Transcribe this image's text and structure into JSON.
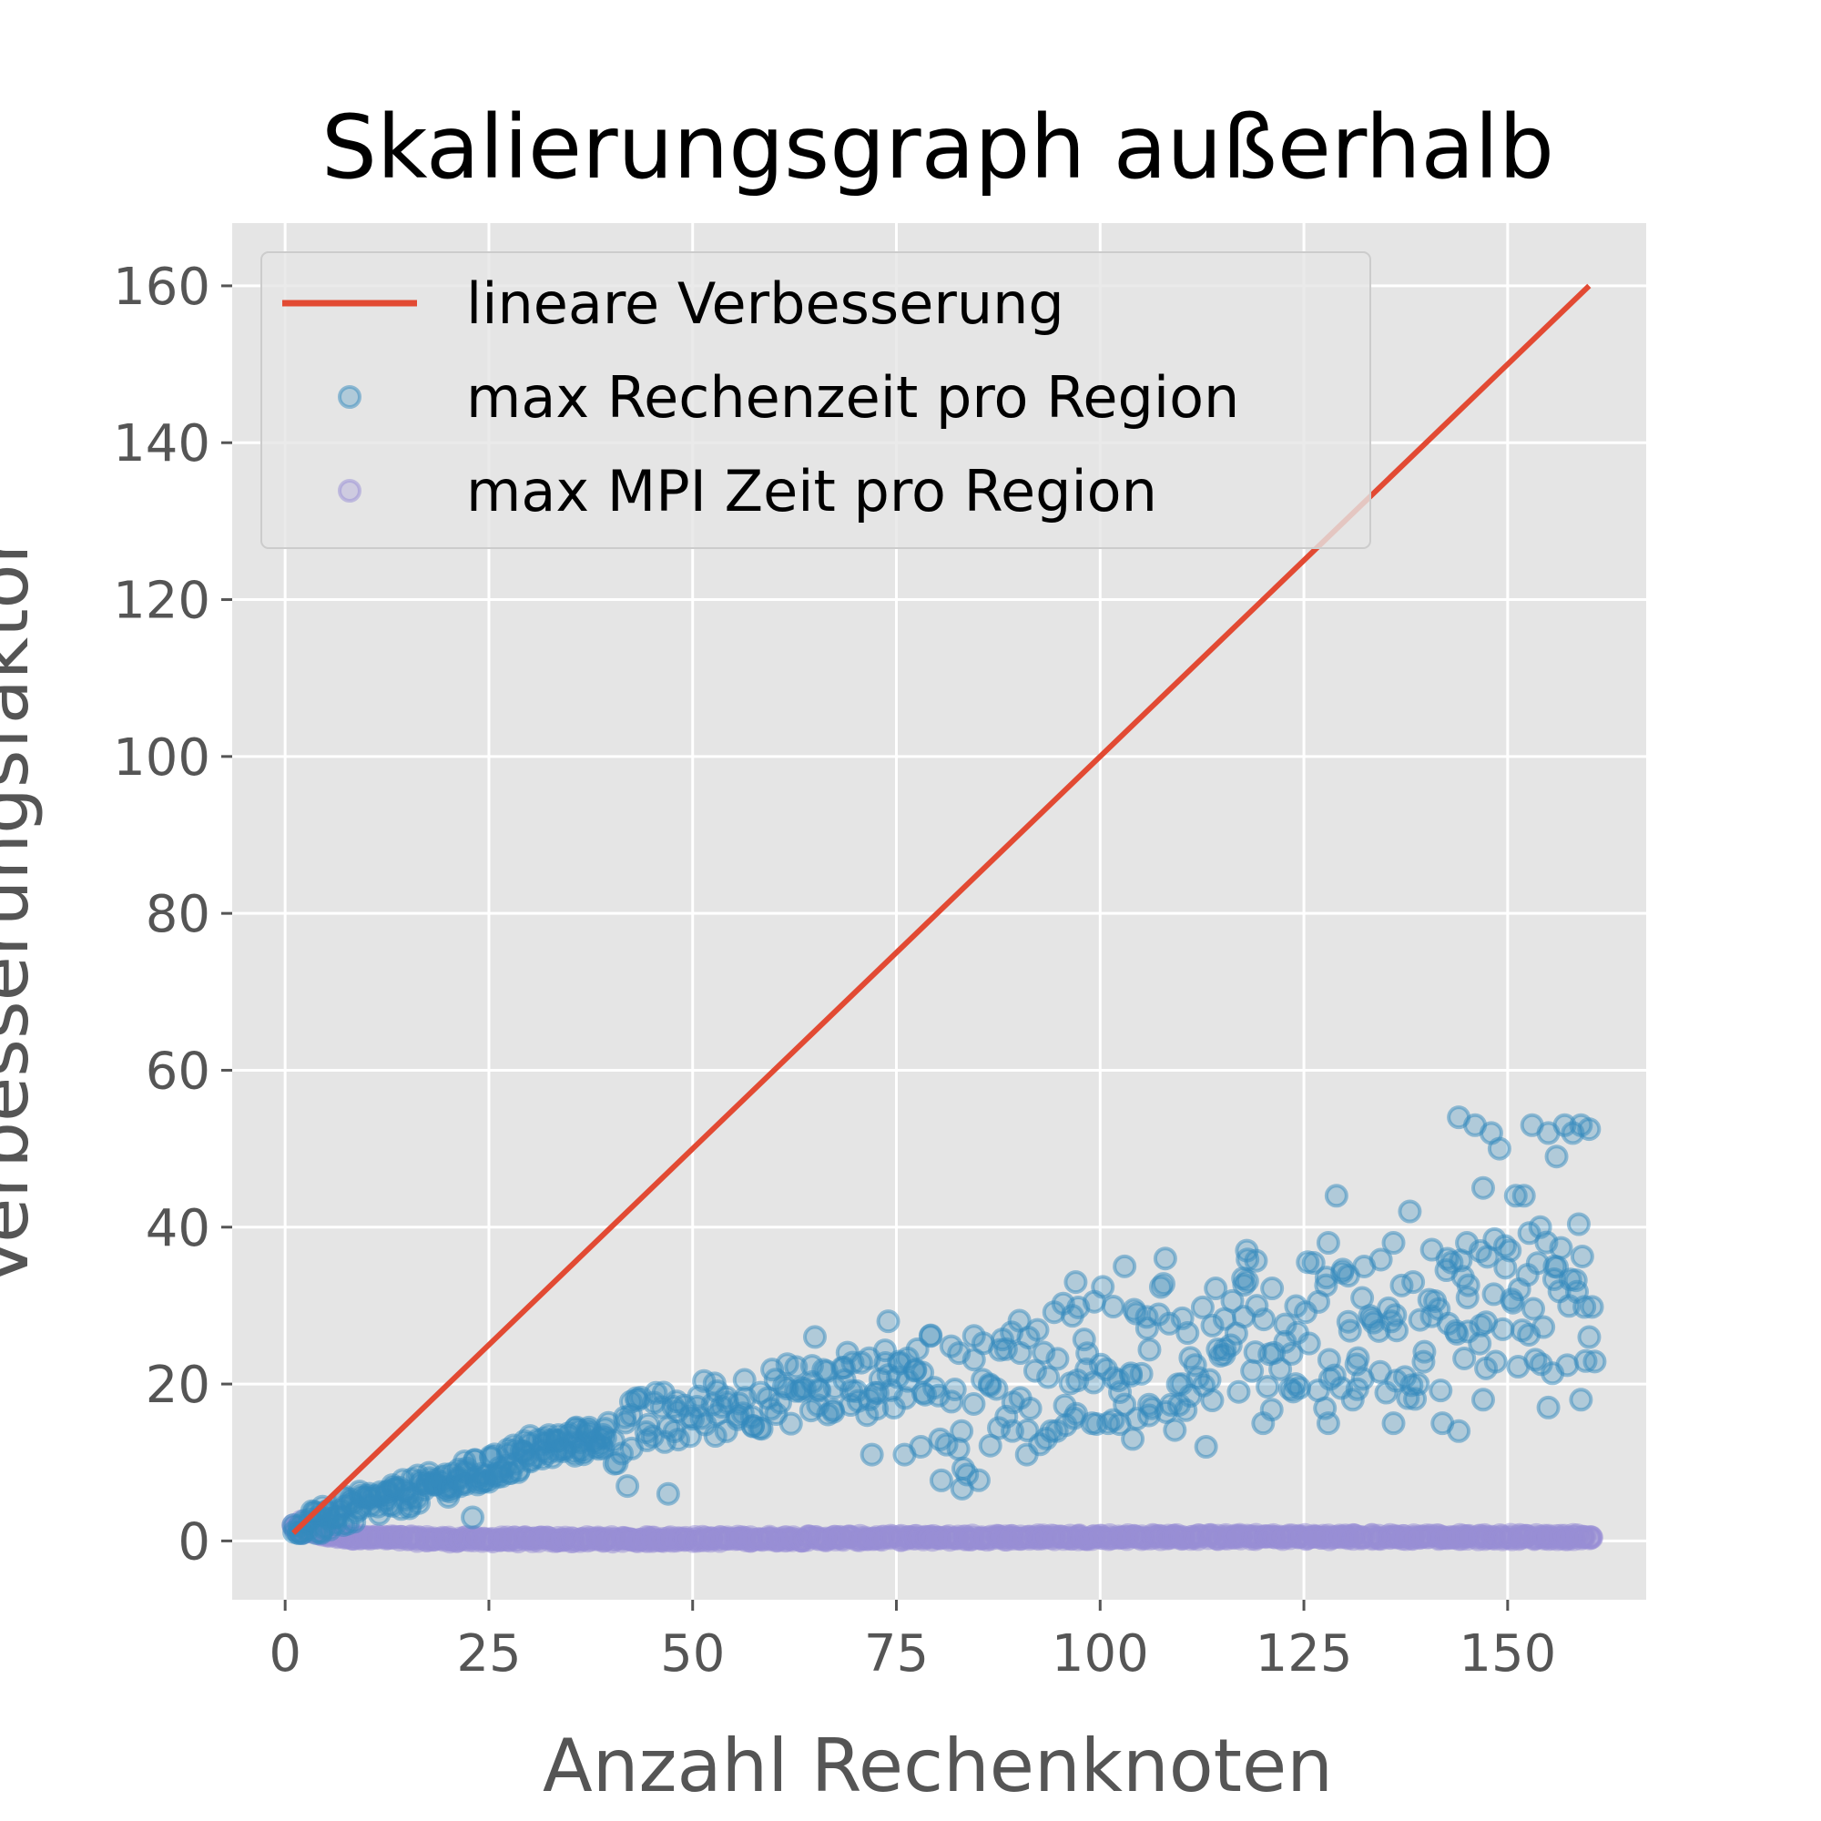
{
  "chart_data": {
    "type": "scatter",
    "title": "Skalierungsgraph außerhalb",
    "xlabel": "Anzahl Rechenknoten",
    "ylabel": "Verbesserungsfaktor",
    "xlim": [
      -6.5,
      167
    ],
    "ylim": [
      -7.5,
      168
    ],
    "xticks": [
      0,
      25,
      50,
      75,
      100,
      125,
      150
    ],
    "yticks": [
      0,
      20,
      40,
      60,
      80,
      100,
      120,
      140,
      160
    ],
    "grid": true,
    "legend_position": "top-left",
    "series": [
      {
        "name": "lineare Verbesserung",
        "kind": "line",
        "color": "#E24A33",
        "x": [
          1,
          160
        ],
        "y": [
          1,
          160
        ]
      },
      {
        "name": "max Rechenzeit pro Region",
        "kind": "scatter",
        "color": "#348ABD",
        "trend": {
          "x": [
            1,
            5,
            10,
            15,
            20,
            25,
            30,
            40,
            50,
            60,
            70,
            80,
            90,
            100,
            110,
            120,
            130,
            140,
            150,
            160
          ],
          "y": [
            1,
            3.5,
            5,
            6.5,
            8,
            9.5,
            12,
            14,
            17,
            19,
            20,
            23,
            27,
            31,
            32,
            34,
            35,
            35,
            37,
            38
          ]
        },
        "extra_points": [
          [
            144,
            54
          ],
          [
            146,
            53
          ],
          [
            148,
            52
          ],
          [
            149,
            50
          ],
          [
            153,
            53
          ],
          [
            155,
            52
          ],
          [
            157,
            53
          ],
          [
            158,
            52
          ],
          [
            159,
            53
          ],
          [
            160,
            52.5
          ],
          [
            129,
            44
          ],
          [
            138,
            42
          ],
          [
            147,
            45
          ],
          [
            151,
            44
          ],
          [
            154,
            40
          ],
          [
            156,
            49
          ],
          [
            152,
            44
          ],
          [
            97,
            33
          ],
          [
            103,
            35
          ],
          [
            108,
            36
          ],
          [
            118,
            37
          ],
          [
            128,
            38
          ],
          [
            136,
            38
          ],
          [
            145,
            38
          ],
          [
            74,
            28
          ],
          [
            76,
            11
          ],
          [
            78,
            12
          ],
          [
            91,
            11
          ],
          [
            94,
            14
          ],
          [
            101,
            15
          ],
          [
            104,
            13
          ],
          [
            113,
            12
          ],
          [
            120,
            15
          ],
          [
            128,
            15
          ],
          [
            136,
            15
          ],
          [
            142,
            15
          ],
          [
            144,
            14
          ],
          [
            65,
            26
          ],
          [
            69,
            24
          ],
          [
            72,
            11
          ],
          [
            83,
            14
          ],
          [
            99,
            15
          ],
          [
            106,
            16
          ],
          [
            110,
            20
          ],
          [
            117,
            19
          ],
          [
            124,
            20
          ],
          [
            131,
            18
          ],
          [
            139,
            20
          ],
          [
            147,
            18
          ],
          [
            155,
            17
          ],
          [
            159,
            18
          ],
          [
            42,
            7
          ],
          [
            47,
            6
          ],
          [
            23,
            3
          ]
        ]
      },
      {
        "name": "max MPI Zeit pro Region",
        "kind": "scatter",
        "color": "#988ED5",
        "trend": {
          "x": [
            1,
            3,
            5,
            10,
            20,
            40,
            60,
            80,
            100,
            120,
            140,
            160
          ],
          "y": [
            1.5,
            1.2,
            0.8,
            0.4,
            0.2,
            0.2,
            0.3,
            0.4,
            0.5,
            0.5,
            0.5,
            0.5
          ]
        },
        "extra_points": [
          [
            1,
            2
          ],
          [
            2,
            2.5
          ],
          [
            3,
            2
          ],
          [
            2,
            1
          ]
        ]
      }
    ]
  }
}
